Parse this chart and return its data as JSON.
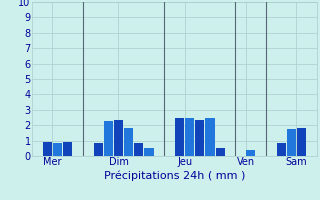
{
  "xlabel": "Précipitations 24h ( mm )",
  "background_color": "#cef0ec",
  "bar_color_a": "#1144bb",
  "bar_color_b": "#2277dd",
  "ylim": [
    0,
    10
  ],
  "yticks": [
    0,
    1,
    2,
    3,
    4,
    5,
    6,
    7,
    8,
    9,
    10
  ],
  "grid_color": "#aacccc",
  "vline_color": "#556677",
  "bars": [
    {
      "x": 1,
      "height": 0.9,
      "color": "#1144bb"
    },
    {
      "x": 2,
      "height": 0.85,
      "color": "#2277dd"
    },
    {
      "x": 3,
      "height": 0.9,
      "color": "#1144bb"
    },
    {
      "x": 6,
      "height": 0.85,
      "color": "#1144bb"
    },
    {
      "x": 7,
      "height": 2.3,
      "color": "#2277dd"
    },
    {
      "x": 8,
      "height": 2.35,
      "color": "#1144bb"
    },
    {
      "x": 9,
      "height": 1.85,
      "color": "#2277dd"
    },
    {
      "x": 10,
      "height": 0.85,
      "color": "#1144bb"
    },
    {
      "x": 11,
      "height": 0.5,
      "color": "#2277dd"
    },
    {
      "x": 14,
      "height": 2.5,
      "color": "#1144bb"
    },
    {
      "x": 15,
      "height": 2.45,
      "color": "#2277dd"
    },
    {
      "x": 16,
      "height": 2.35,
      "color": "#1144bb"
    },
    {
      "x": 17,
      "height": 2.5,
      "color": "#2277dd"
    },
    {
      "x": 18,
      "height": 0.55,
      "color": "#1144bb"
    },
    {
      "x": 21,
      "height": 0.4,
      "color": "#2277dd"
    },
    {
      "x": 24,
      "height": 0.85,
      "color": "#1144bb"
    },
    {
      "x": 25,
      "height": 1.75,
      "color": "#2277dd"
    },
    {
      "x": 26,
      "height": 1.85,
      "color": "#1144bb"
    }
  ],
  "vlines_x": [
    4.5,
    12.5,
    19.5,
    22.5
  ],
  "day_labels": [
    {
      "label": "Mer",
      "x": 1.5
    },
    {
      "label": "Dim",
      "x": 8.0
    },
    {
      "label": "Jeu",
      "x": 14.5
    },
    {
      "label": "Ven",
      "x": 20.5
    },
    {
      "label": "Sam",
      "x": 25.5
    }
  ],
  "xlim": [
    -0.5,
    27.5
  ],
  "tick_fontsize": 7,
  "xlabel_fontsize": 8,
  "ylabel_fontsize": 7
}
